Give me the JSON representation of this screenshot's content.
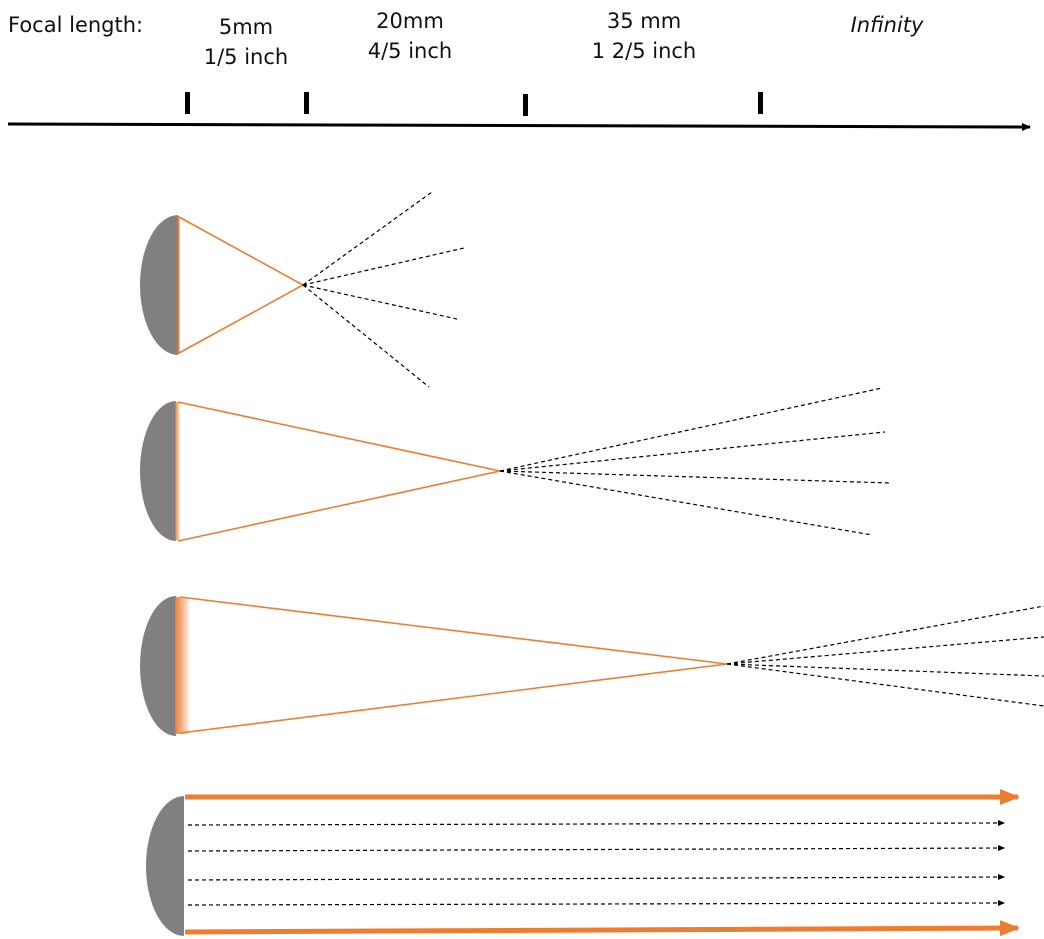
{
  "scale": {
    "title": "Focal length:",
    "marks": [
      {
        "mm": "5mm",
        "inch": "1/5 inch"
      },
      {
        "mm": "20mm",
        "inch": "4/5 inch"
      },
      {
        "mm": "35 mm",
        "inch": "1 2/5 inch"
      },
      {
        "mm": "Infinity",
        "inch": ""
      }
    ]
  },
  "colors": {
    "ray": "#ED7D31",
    "lens": "#808080",
    "dashed": "#000000",
    "axis": "#000000"
  }
}
